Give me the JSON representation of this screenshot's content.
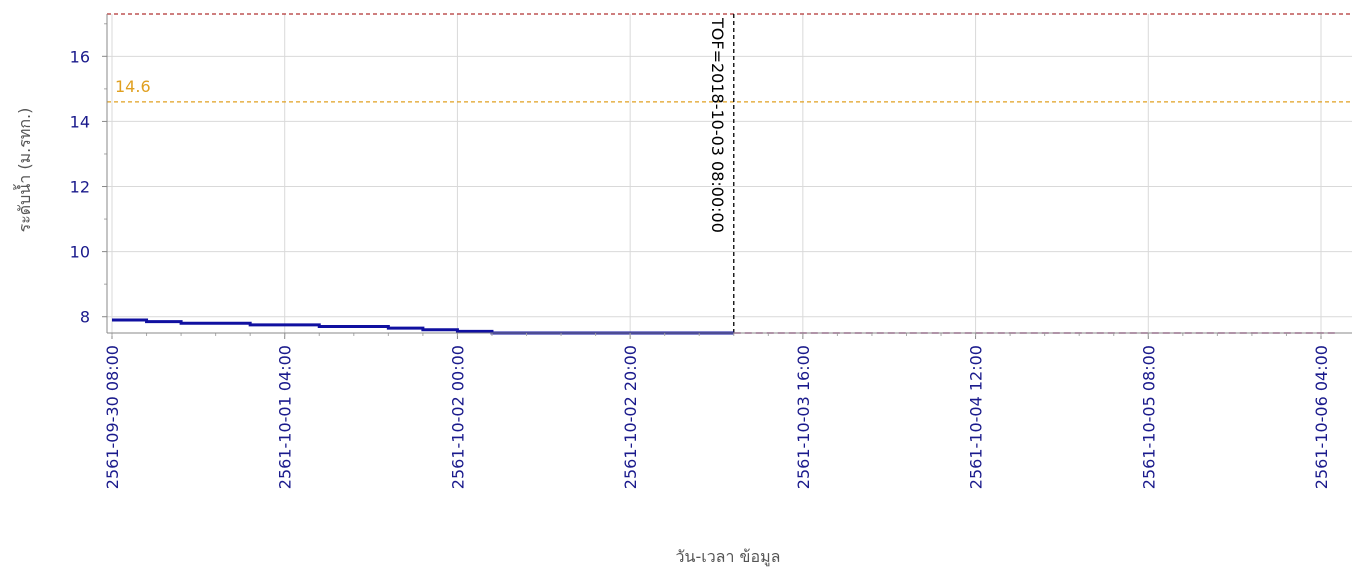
{
  "chart_data": {
    "type": "line",
    "xlabel": "วัน-เวลา ข้อมูล",
    "ylabel": "ระดับน้ำ (ม.รทก.)",
    "ylim": [
      7.5,
      17.3
    ],
    "xlim": [
      "2561-09-30 08:00",
      "2561-10-06 06:00"
    ],
    "y_ticks": [
      8,
      10,
      12,
      14,
      16
    ],
    "x_ticks": [
      "2561-09-30 08:00",
      "2561-10-01 04:00",
      "2561-10-02 00:00",
      "2561-10-02 20:00",
      "2561-10-03 16:00",
      "2561-10-04 12:00",
      "2561-10-05 08:00",
      "2561-10-06 04:00"
    ],
    "grid": true,
    "series": [
      {
        "color": "#1010a0",
        "style": "solid",
        "x": [
          "2561-09-30 08:00",
          "2561-09-30 12:00",
          "2561-09-30 16:00",
          "2561-10-01 00:00",
          "2561-10-01 04:00",
          "2561-10-01 08:00",
          "2561-10-01 12:00",
          "2561-10-01 16:00",
          "2561-10-01 20:00",
          "2561-10-02 00:00",
          "2561-10-02 04:00",
          "2561-10-02 12:00",
          "2561-10-02 20:00",
          "2561-10-03 08:00"
        ],
        "y": [
          7.9,
          7.85,
          7.8,
          7.75,
          7.75,
          7.7,
          7.7,
          7.65,
          7.6,
          7.55,
          7.5,
          7.5,
          7.5,
          7.5
        ]
      },
      {
        "color": "#b04090",
        "style": "dashed",
        "x": [
          "2561-10-03 08:00",
          "2561-10-06 06:00"
        ],
        "y": [
          7.5,
          7.5
        ]
      }
    ],
    "reference_lines": [
      {
        "axis": "y",
        "value": 17.3,
        "color": "#b03030",
        "style": "dashed",
        "label": ""
      },
      {
        "axis": "y",
        "value": 14.6,
        "color": "#e0a020",
        "style": "dashed",
        "label": "14.6"
      },
      {
        "axis": "x",
        "value": "2561-10-03 08:00",
        "color": "#000000",
        "style": "dashed",
        "label": "TOF=2018-10-03 08:00:00"
      }
    ]
  }
}
